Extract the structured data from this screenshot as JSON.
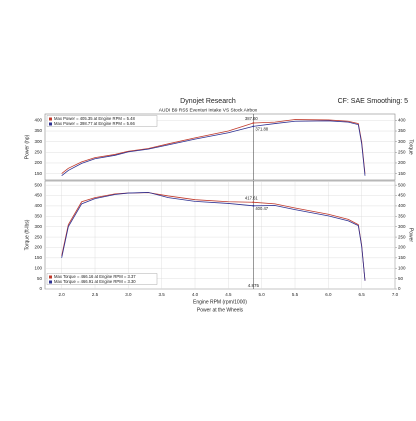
{
  "header": {
    "title": "Dynojet Research",
    "settings": "CF: SAE Smoothing: 5",
    "subtitle": "AUDI B9 RS5 Eventuri Intake VS Stock Airbox"
  },
  "chart_data": [
    {
      "type": "line",
      "ylabel": "Power (hp)",
      "y2label": "Torque",
      "x": [
        2.0,
        2.1,
        2.3,
        2.5,
        2.8,
        3.0,
        3.3,
        3.6,
        4.0,
        4.5,
        4.875,
        5.2,
        5.5,
        6.0,
        6.3,
        6.45,
        6.5,
        6.55
      ],
      "xlim": [
        1.75,
        7.0
      ],
      "ylim": [
        120,
        430
      ],
      "yticks": [
        150,
        200,
        250,
        300,
        350,
        400
      ],
      "y2lim": [
        120,
        430
      ],
      "y2ticks": [
        150,
        200,
        250,
        300,
        350,
        400
      ],
      "series": [
        {
          "name": "Max Power = 405.35 at Engine RPM = 5.48",
          "color": "#c0392b",
          "values": [
            150,
            175,
            205,
            225,
            240,
            255,
            268,
            290,
            318,
            350,
            387.6,
            392,
            404,
            402,
            396,
            385,
            300,
            150
          ]
        },
        {
          "name": "Max Power = 398.77 at Engine RPM = 5.66",
          "color": "#2e3192",
          "values": [
            140,
            165,
            198,
            220,
            236,
            252,
            265,
            285,
            312,
            342,
            371.88,
            385,
            396,
            398,
            392,
            380,
            290,
            140
          ]
        }
      ],
      "cursor_x": 4.875,
      "annotations": [
        {
          "x": 4.875,
          "y": 387.6,
          "label": "387.60"
        },
        {
          "x": 4.875,
          "y": 371.88,
          "label": "371.88"
        }
      ]
    },
    {
      "type": "line",
      "ylabel": "Torque (ft-lbs)",
      "y2label": "Power",
      "xlabel": "Engine RPM (rpm/1000)",
      "caption": "Power at the Wheels",
      "x": [
        2.0,
        2.1,
        2.3,
        2.5,
        2.8,
        3.0,
        3.3,
        3.6,
        4.0,
        4.5,
        4.875,
        5.2,
        5.5,
        6.0,
        6.3,
        6.45,
        6.5,
        6.55
      ],
      "xlim": [
        1.75,
        7.0
      ],
      "xticks": [
        {
          "value": 2,
          "label": "2.0"
        },
        {
          "value": 2.5,
          "label": "2.5"
        },
        {
          "value": 3,
          "label": "3.0"
        },
        {
          "value": 3.5,
          "label": "3.5"
        },
        {
          "value": 4,
          "label": "4.0"
        },
        {
          "value": 4.5,
          "label": "4.5"
        },
        {
          "value": 5,
          "label": "5.0"
        },
        {
          "value": 5.5,
          "label": "5.5"
        },
        {
          "value": 6,
          "label": "6.0"
        },
        {
          "value": 6.5,
          "label": "6.5"
        },
        {
          "value": 7,
          "label": "7.0"
        }
      ],
      "ylim": [
        0,
        520
      ],
      "yticks": [
        0,
        50,
        100,
        150,
        200,
        250,
        300,
        350,
        400,
        450,
        500
      ],
      "y2lim": [
        0,
        520
      ],
      "y2ticks": [
        0,
        50,
        100,
        150,
        200,
        250,
        300,
        350,
        400,
        450,
        500
      ],
      "series": [
        {
          "name": "Max Torque = 466.16 at Engine RPM = 3.37",
          "color": "#c0392b",
          "values": [
            160,
            310,
            420,
            440,
            458,
            462,
            464,
            448,
            430,
            420,
            417.61,
            410,
            390,
            360,
            335,
            310,
            210,
            40
          ]
        },
        {
          "name": "Max Torque = 466.91 at Engine RPM = 3.30",
          "color": "#2e3192",
          "values": [
            150,
            300,
            410,
            435,
            455,
            462,
            465,
            440,
            422,
            412,
            400.47,
            402,
            382,
            352,
            328,
            305,
            205,
            40
          ]
        }
      ],
      "cursor_x": 4.875,
      "annotations": [
        {
          "x": 4.875,
          "y": 417.61,
          "label": "417.61"
        },
        {
          "x": 4.875,
          "y": 400.47,
          "label": "400.47"
        }
      ]
    }
  ]
}
